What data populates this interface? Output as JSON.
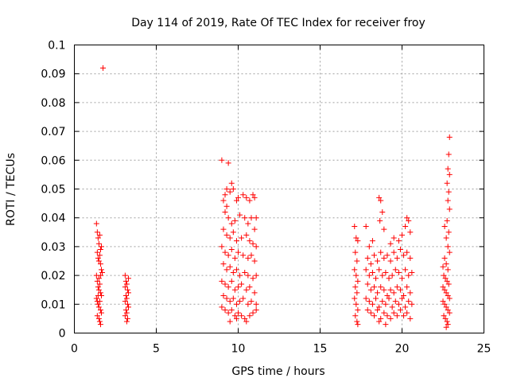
{
  "chart_data": {
    "type": "scatter",
    "title": "Day 114 of 2019, Rate Of TEC Index for receiver froy",
    "xlabel": "GPS time / hours",
    "ylabel": "ROTI / TECUs",
    "xlim": [
      0,
      25
    ],
    "ylim": [
      0,
      0.1
    ],
    "grid": true,
    "marker": "+",
    "color": "#ff0000",
    "x_ticks": [
      0,
      5,
      10,
      15,
      20,
      25
    ],
    "x_tick_labels": [
      "0",
      "5",
      "10",
      "15",
      "20",
      "25"
    ],
    "y_ticks": [
      0,
      0.01,
      0.02,
      0.03,
      0.04,
      0.05,
      0.06,
      0.07,
      0.08,
      0.09,
      0.1
    ],
    "y_tick_labels": [
      "0",
      "0.01",
      "0.02",
      "0.03",
      "0.04",
      "0.05",
      "0.06",
      "0.07",
      "0.08",
      "0.09",
      "0.1"
    ],
    "points": [
      [
        1.75,
        0.092
      ],
      [
        1.35,
        0.038
      ],
      [
        1.4,
        0.035
      ],
      [
        1.45,
        0.033
      ],
      [
        1.5,
        0.031
      ],
      [
        1.55,
        0.034
      ],
      [
        1.6,
        0.029
      ],
      [
        1.65,
        0.03
      ],
      [
        1.4,
        0.028
      ],
      [
        1.45,
        0.026
      ],
      [
        1.5,
        0.025
      ],
      [
        1.55,
        0.027
      ],
      [
        1.6,
        0.024
      ],
      [
        1.65,
        0.022
      ],
      [
        1.7,
        0.021
      ],
      [
        1.35,
        0.02
      ],
      [
        1.4,
        0.018
      ],
      [
        1.45,
        0.016
      ],
      [
        1.5,
        0.015
      ],
      [
        1.55,
        0.017
      ],
      [
        1.6,
        0.014
      ],
      [
        1.65,
        0.013
      ],
      [
        1.35,
        0.012
      ],
      [
        1.4,
        0.011
      ],
      [
        1.45,
        0.01
      ],
      [
        1.5,
        0.009
      ],
      [
        1.55,
        0.011
      ],
      [
        1.6,
        0.008
      ],
      [
        1.65,
        0.007
      ],
      [
        1.4,
        0.006
      ],
      [
        1.5,
        0.005
      ],
      [
        1.55,
        0.004
      ],
      [
        1.6,
        0.003
      ],
      [
        1.45,
        0.013
      ],
      [
        1.5,
        0.019
      ],
      [
        1.6,
        0.02
      ],
      [
        3.1,
        0.02
      ],
      [
        3.15,
        0.018
      ],
      [
        3.2,
        0.017
      ],
      [
        3.25,
        0.015
      ],
      [
        3.3,
        0.019
      ],
      [
        3.15,
        0.013
      ],
      [
        3.2,
        0.012
      ],
      [
        3.1,
        0.011
      ],
      [
        3.25,
        0.01
      ],
      [
        3.3,
        0.009
      ],
      [
        3.15,
        0.008
      ],
      [
        3.2,
        0.007
      ],
      [
        3.1,
        0.006
      ],
      [
        3.25,
        0.005
      ],
      [
        3.2,
        0.004
      ],
      [
        3.3,
        0.014
      ],
      [
        3.1,
        0.016
      ],
      [
        9.0,
        0.06
      ],
      [
        9.4,
        0.059
      ],
      [
        9.6,
        0.052
      ],
      [
        9.3,
        0.05
      ],
      [
        9.2,
        0.048
      ],
      [
        9.5,
        0.049
      ],
      [
        9.7,
        0.05
      ],
      [
        9.1,
        0.046
      ],
      [
        9.3,
        0.044
      ],
      [
        9.9,
        0.046
      ],
      [
        10.0,
        0.047
      ],
      [
        10.3,
        0.048
      ],
      [
        10.5,
        0.047
      ],
      [
        10.7,
        0.046
      ],
      [
        10.9,
        0.048
      ],
      [
        11.0,
        0.047
      ],
      [
        11.1,
        0.04
      ],
      [
        9.2,
        0.042
      ],
      [
        9.4,
        0.04
      ],
      [
        9.6,
        0.038
      ],
      [
        9.8,
        0.039
      ],
      [
        10.1,
        0.041
      ],
      [
        10.4,
        0.04
      ],
      [
        10.6,
        0.038
      ],
      [
        10.8,
        0.04
      ],
      [
        11.0,
        0.036
      ],
      [
        9.1,
        0.036
      ],
      [
        9.3,
        0.034
      ],
      [
        9.5,
        0.033
      ],
      [
        9.7,
        0.035
      ],
      [
        9.9,
        0.032
      ],
      [
        10.2,
        0.033
      ],
      [
        10.5,
        0.034
      ],
      [
        10.7,
        0.032
      ],
      [
        10.9,
        0.031
      ],
      [
        11.1,
        0.03
      ],
      [
        9.0,
        0.03
      ],
      [
        9.2,
        0.028
      ],
      [
        9.4,
        0.027
      ],
      [
        9.6,
        0.029
      ],
      [
        9.8,
        0.026
      ],
      [
        10.0,
        0.028
      ],
      [
        10.3,
        0.027
      ],
      [
        10.6,
        0.026
      ],
      [
        10.8,
        0.027
      ],
      [
        11.0,
        0.025
      ],
      [
        9.1,
        0.024
      ],
      [
        9.3,
        0.022
      ],
      [
        9.5,
        0.023
      ],
      [
        9.7,
        0.021
      ],
      [
        9.9,
        0.022
      ],
      [
        10.1,
        0.02
      ],
      [
        10.4,
        0.021
      ],
      [
        10.6,
        0.02
      ],
      [
        10.9,
        0.019
      ],
      [
        11.1,
        0.02
      ],
      [
        9.0,
        0.018
      ],
      [
        9.2,
        0.017
      ],
      [
        9.4,
        0.016
      ],
      [
        9.6,
        0.018
      ],
      [
        9.8,
        0.015
      ],
      [
        10.0,
        0.016
      ],
      [
        10.2,
        0.017
      ],
      [
        10.5,
        0.015
      ],
      [
        10.7,
        0.016
      ],
      [
        11.0,
        0.014
      ],
      [
        9.1,
        0.013
      ],
      [
        9.3,
        0.012
      ],
      [
        9.5,
        0.011
      ],
      [
        9.7,
        0.012
      ],
      [
        9.9,
        0.01
      ],
      [
        10.1,
        0.011
      ],
      [
        10.3,
        0.012
      ],
      [
        10.6,
        0.01
      ],
      [
        10.8,
        0.011
      ],
      [
        11.1,
        0.01
      ],
      [
        9.0,
        0.009
      ],
      [
        9.2,
        0.008
      ],
      [
        9.4,
        0.007
      ],
      [
        9.6,
        0.008
      ],
      [
        9.8,
        0.006
      ],
      [
        10.0,
        0.007
      ],
      [
        10.2,
        0.006
      ],
      [
        10.4,
        0.005
      ],
      [
        10.7,
        0.006
      ],
      [
        10.9,
        0.007
      ],
      [
        11.1,
        0.008
      ],
      [
        9.5,
        0.004
      ],
      [
        9.9,
        0.005
      ],
      [
        10.5,
        0.004
      ],
      [
        17.1,
        0.037
      ],
      [
        17.2,
        0.033
      ],
      [
        17.3,
        0.032
      ],
      [
        17.15,
        0.028
      ],
      [
        17.25,
        0.025
      ],
      [
        17.1,
        0.022
      ],
      [
        17.2,
        0.02
      ],
      [
        17.3,
        0.018
      ],
      [
        17.15,
        0.016
      ],
      [
        17.25,
        0.014
      ],
      [
        17.1,
        0.012
      ],
      [
        17.2,
        0.01
      ],
      [
        17.3,
        0.008
      ],
      [
        17.15,
        0.006
      ],
      [
        17.25,
        0.004
      ],
      [
        17.3,
        0.003
      ],
      [
        17.8,
        0.037
      ],
      [
        18.0,
        0.03
      ],
      [
        18.2,
        0.032
      ],
      [
        18.6,
        0.047
      ],
      [
        18.7,
        0.046
      ],
      [
        18.8,
        0.042
      ],
      [
        18.65,
        0.039
      ],
      [
        18.9,
        0.036
      ],
      [
        19.3,
        0.031
      ],
      [
        19.5,
        0.033
      ],
      [
        19.8,
        0.032
      ],
      [
        20.0,
        0.034
      ],
      [
        20.2,
        0.037
      ],
      [
        20.3,
        0.04
      ],
      [
        20.4,
        0.039
      ],
      [
        20.5,
        0.035
      ],
      [
        17.9,
        0.026
      ],
      [
        18.1,
        0.024
      ],
      [
        18.3,
        0.027
      ],
      [
        18.5,
        0.025
      ],
      [
        18.7,
        0.028
      ],
      [
        18.9,
        0.026
      ],
      [
        19.1,
        0.027
      ],
      [
        19.3,
        0.025
      ],
      [
        19.5,
        0.028
      ],
      [
        19.7,
        0.026
      ],
      [
        19.9,
        0.029
      ],
      [
        20.1,
        0.027
      ],
      [
        20.3,
        0.028
      ],
      [
        20.5,
        0.026
      ],
      [
        17.8,
        0.022
      ],
      [
        18.0,
        0.02
      ],
      [
        18.2,
        0.021
      ],
      [
        18.4,
        0.019
      ],
      [
        18.6,
        0.022
      ],
      [
        18.8,
        0.02
      ],
      [
        19.0,
        0.021
      ],
      [
        19.2,
        0.019
      ],
      [
        19.4,
        0.02
      ],
      [
        19.6,
        0.022
      ],
      [
        19.8,
        0.021
      ],
      [
        20.0,
        0.019
      ],
      [
        20.2,
        0.022
      ],
      [
        20.4,
        0.02
      ],
      [
        20.6,
        0.021
      ],
      [
        17.9,
        0.017
      ],
      [
        18.1,
        0.015
      ],
      [
        18.3,
        0.016
      ],
      [
        18.5,
        0.014
      ],
      [
        18.7,
        0.016
      ],
      [
        18.9,
        0.015
      ],
      [
        19.1,
        0.013
      ],
      [
        19.3,
        0.015
      ],
      [
        19.5,
        0.014
      ],
      [
        19.7,
        0.016
      ],
      [
        19.9,
        0.015
      ],
      [
        20.1,
        0.013
      ],
      [
        20.3,
        0.016
      ],
      [
        20.5,
        0.014
      ],
      [
        17.8,
        0.012
      ],
      [
        18.0,
        0.011
      ],
      [
        18.2,
        0.01
      ],
      [
        18.4,
        0.012
      ],
      [
        18.6,
        0.009
      ],
      [
        18.8,
        0.011
      ],
      [
        19.0,
        0.01
      ],
      [
        19.2,
        0.012
      ],
      [
        19.4,
        0.009
      ],
      [
        19.6,
        0.011
      ],
      [
        19.8,
        0.01
      ],
      [
        20.0,
        0.012
      ],
      [
        20.2,
        0.009
      ],
      [
        20.4,
        0.011
      ],
      [
        20.6,
        0.01
      ],
      [
        17.9,
        0.008
      ],
      [
        18.1,
        0.007
      ],
      [
        18.3,
        0.006
      ],
      [
        18.5,
        0.008
      ],
      [
        18.7,
        0.005
      ],
      [
        18.9,
        0.007
      ],
      [
        19.1,
        0.006
      ],
      [
        19.3,
        0.005
      ],
      [
        19.5,
        0.007
      ],
      [
        19.7,
        0.006
      ],
      [
        19.9,
        0.008
      ],
      [
        20.1,
        0.006
      ],
      [
        20.3,
        0.007
      ],
      [
        20.5,
        0.005
      ],
      [
        18.6,
        0.004
      ],
      [
        19.0,
        0.003
      ],
      [
        22.9,
        0.068
      ],
      [
        22.85,
        0.062
      ],
      [
        22.8,
        0.057
      ],
      [
        22.9,
        0.055
      ],
      [
        22.75,
        0.052
      ],
      [
        22.85,
        0.049
      ],
      [
        22.8,
        0.046
      ],
      [
        22.9,
        0.043
      ],
      [
        22.75,
        0.039
      ],
      [
        22.85,
        0.035
      ],
      [
        22.6,
        0.037
      ],
      [
        22.7,
        0.033
      ],
      [
        22.8,
        0.03
      ],
      [
        22.9,
        0.028
      ],
      [
        22.6,
        0.026
      ],
      [
        22.7,
        0.024
      ],
      [
        22.8,
        0.022
      ],
      [
        22.5,
        0.023
      ],
      [
        22.55,
        0.02
      ],
      [
        22.65,
        0.019
      ],
      [
        22.75,
        0.018
      ],
      [
        22.85,
        0.017
      ],
      [
        22.5,
        0.016
      ],
      [
        22.6,
        0.015
      ],
      [
        22.7,
        0.014
      ],
      [
        22.8,
        0.013
      ],
      [
        22.9,
        0.012
      ],
      [
        22.5,
        0.011
      ],
      [
        22.6,
        0.01
      ],
      [
        22.7,
        0.009
      ],
      [
        22.8,
        0.008
      ],
      [
        22.9,
        0.007
      ],
      [
        22.55,
        0.006
      ],
      [
        22.65,
        0.005
      ],
      [
        22.75,
        0.004
      ],
      [
        22.8,
        0.003
      ],
      [
        22.7,
        0.002
      ]
    ]
  }
}
